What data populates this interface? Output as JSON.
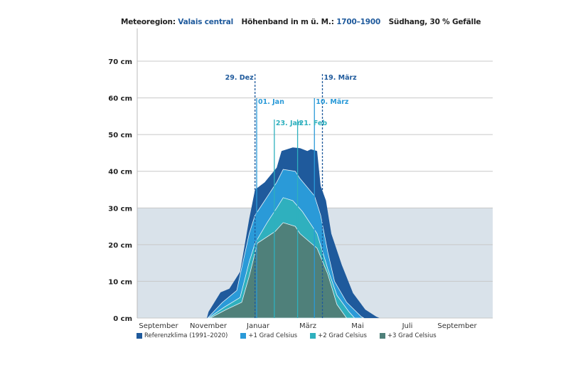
{
  "header": {
    "region_label": "Meteoregion:",
    "region_value": "Valais central",
    "band_label": "Höhenband in m ü. M.:",
    "band_value": "1700–1900",
    "slope": "Südhang, 30 % Gefälle"
  },
  "chart_data": {
    "type": "area",
    "ylim": [
      0,
      70
    ],
    "y_ticks": [
      0,
      10,
      20,
      30,
      40,
      50,
      60,
      70
    ],
    "y_tick_labels": [
      "0 cm",
      "10 cm",
      "20 cm",
      "30 cm",
      "40 cm",
      "50 cm",
      "60 cm",
      "70 cm"
    ],
    "x_tick_labels": [
      "September",
      "November",
      "Januar",
      "März",
      "Mai",
      "Juli",
      "September"
    ],
    "x_ticks": [
      "2020-09-01",
      "2020-11-01",
      "2021-01-01",
      "2021-03-01",
      "2021-05-01",
      "2021-07-01",
      "2021-09-01"
    ],
    "xlim": [
      "2020-08-07",
      "2021-10-15"
    ],
    "grid": true,
    "shaded_band": {
      "from": 0,
      "to": 30,
      "color": "#d9e2ea"
    },
    "legend_position": "bottom-left",
    "series": [
      {
        "name": "Referenzklima (1991–2020)",
        "color": "#1f5a9c",
        "points": [
          [
            "2020-11-01",
            0
          ],
          [
            "2020-11-03",
            1.7
          ],
          [
            "2020-11-18",
            7
          ],
          [
            "2020-11-29",
            8
          ],
          [
            "2020-12-11",
            12.6
          ],
          [
            "2020-12-22",
            27
          ],
          [
            "2020-12-29",
            35
          ],
          [
            "2021-01-11",
            37
          ],
          [
            "2021-01-26",
            41
          ],
          [
            "2021-02-01",
            45.5
          ],
          [
            "2021-02-15",
            46.5
          ],
          [
            "2021-02-24",
            46.3
          ],
          [
            "2021-03-02",
            45.5
          ],
          [
            "2021-03-06",
            46
          ],
          [
            "2021-03-13",
            45.5
          ],
          [
            "2021-03-17",
            36
          ],
          [
            "2021-03-23",
            32
          ],
          [
            "2021-04-01",
            23
          ],
          [
            "2021-04-14",
            14.5
          ],
          [
            "2021-04-28",
            6.8
          ],
          [
            "2021-05-12",
            2.3
          ],
          [
            "2021-05-25",
            0.4
          ],
          [
            "2021-05-29",
            0
          ]
        ]
      },
      {
        "name": "+1 Grad Celsius",
        "color": "#2a9ad8",
        "points": [
          [
            "2020-11-02",
            0
          ],
          [
            "2020-11-20",
            4.2
          ],
          [
            "2020-12-07",
            7.5
          ],
          [
            "2020-12-22",
            23
          ],
          [
            "2020-12-29",
            28
          ],
          [
            "2021-01-11",
            32
          ],
          [
            "2021-01-26",
            37
          ],
          [
            "2021-02-03",
            40.5
          ],
          [
            "2021-02-18",
            40
          ],
          [
            "2021-02-24",
            38
          ],
          [
            "2021-03-10",
            33.3
          ],
          [
            "2021-03-17",
            28
          ],
          [
            "2021-03-25",
            18
          ],
          [
            "2021-04-05",
            10
          ],
          [
            "2021-04-20",
            4.3
          ],
          [
            "2021-05-07",
            0.4
          ],
          [
            "2021-05-10",
            0
          ]
        ]
      },
      {
        "name": "+2 Grad Celsius",
        "color": "#2fb0be",
        "points": [
          [
            "2020-11-03",
            0
          ],
          [
            "2020-11-23",
            3
          ],
          [
            "2020-12-11",
            5.6
          ],
          [
            "2020-12-22",
            15.3
          ],
          [
            "2020-12-29",
            20.4
          ],
          [
            "2021-01-14",
            26
          ],
          [
            "2021-01-26",
            30
          ],
          [
            "2021-02-03",
            32.8
          ],
          [
            "2021-02-15",
            32
          ],
          [
            "2021-02-27",
            29
          ],
          [
            "2021-03-13",
            23
          ],
          [
            "2021-03-25",
            13.4
          ],
          [
            "2021-04-08",
            6.2
          ],
          [
            "2021-04-23",
            1.7
          ],
          [
            "2021-04-30",
            0
          ]
        ]
      },
      {
        "name": "+3 Grad Celsius",
        "color": "#4f807a",
        "points": [
          [
            "2020-11-05",
            0
          ],
          [
            "2020-11-25",
            2.3
          ],
          [
            "2020-12-13",
            4.3
          ],
          [
            "2020-12-22",
            11.4
          ],
          [
            "2021-01-02",
            20.4
          ],
          [
            "2021-01-24",
            23.6
          ],
          [
            "2021-02-03",
            26
          ],
          [
            "2021-02-18",
            25
          ],
          [
            "2021-02-24",
            23
          ],
          [
            "2021-03-13",
            19
          ],
          [
            "2021-03-25",
            12
          ],
          [
            "2021-04-08",
            3.7
          ],
          [
            "2021-04-20",
            0
          ]
        ]
      }
    ],
    "annotations": [
      {
        "label": "29. Dez",
        "date": "2020-12-29",
        "style": "dashed",
        "color": "#1f5a9c",
        "level": 1
      },
      {
        "label": "19. März",
        "date": "2021-03-19",
        "style": "dashed",
        "color": "#1f5a9c",
        "level": 1
      },
      {
        "label": "01. Jan",
        "date": "2021-01-01",
        "style": "solid",
        "color": "#2a9ad8",
        "level": 2
      },
      {
        "label": "10. März",
        "date": "2021-03-10",
        "style": "solid",
        "color": "#2a9ad8",
        "level": 2
      },
      {
        "label": "23. Jan",
        "date": "2021-01-23",
        "style": "solid",
        "color": "#2fb0be",
        "level": 3
      },
      {
        "label": "21. Feb",
        "date": "2021-02-21",
        "style": "solid",
        "color": "#2fb0be",
        "level": 3
      }
    ]
  }
}
